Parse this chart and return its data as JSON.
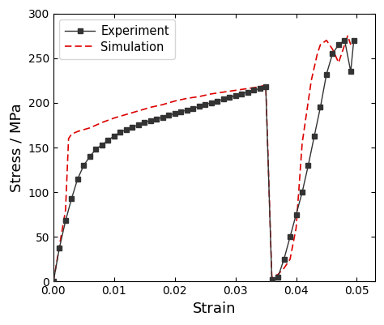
{
  "experiment_strain": [
    0.0,
    0.001,
    0.002,
    0.003,
    0.004,
    0.005,
    0.006,
    0.007,
    0.008,
    0.009,
    0.01,
    0.011,
    0.012,
    0.013,
    0.014,
    0.015,
    0.016,
    0.017,
    0.018,
    0.019,
    0.02,
    0.021,
    0.022,
    0.023,
    0.024,
    0.025,
    0.026,
    0.027,
    0.028,
    0.029,
    0.03,
    0.031,
    0.032,
    0.033,
    0.034,
    0.035,
    0.036,
    0.037,
    0.038,
    0.039,
    0.04,
    0.041,
    0.042,
    0.043,
    0.044,
    0.045,
    0.046,
    0.047,
    0.048,
    0.049,
    0.0495
  ],
  "experiment_stress": [
    0,
    38,
    68,
    93,
    115,
    130,
    140,
    148,
    153,
    158,
    163,
    167,
    170,
    173,
    175,
    178,
    180,
    182,
    184,
    186,
    188,
    190,
    192,
    194,
    196,
    198,
    200,
    202,
    204,
    206,
    208,
    210,
    212,
    214,
    216,
    218,
    2,
    5,
    25,
    50,
    75,
    100,
    130,
    163,
    195,
    232,
    255,
    265,
    270,
    235,
    270
  ],
  "simulation_strain": [
    0.0,
    0.001,
    0.002,
    0.0025,
    0.003,
    0.004,
    0.005,
    0.006,
    0.007,
    0.008,
    0.01,
    0.012,
    0.014,
    0.016,
    0.018,
    0.02,
    0.022,
    0.024,
    0.026,
    0.028,
    0.03,
    0.032,
    0.034,
    0.035,
    0.036,
    0.037,
    0.038,
    0.039,
    0.04,
    0.041,
    0.0425,
    0.0435,
    0.044,
    0.045,
    0.046,
    0.047,
    0.048,
    0.0485,
    0.049
  ],
  "simulation_stress": [
    0,
    40,
    80,
    160,
    165,
    168,
    170,
    172,
    175,
    178,
    183,
    187,
    191,
    195,
    198,
    202,
    205,
    207,
    210,
    212,
    214,
    216,
    218,
    220,
    5,
    8,
    15,
    25,
    60,
    155,
    225,
    255,
    265,
    270,
    260,
    245,
    265,
    275,
    265
  ],
  "xlabel": "Strain",
  "ylabel": "Stress / MPa",
  "xlim": [
    0.0,
    0.053
  ],
  "ylim": [
    0,
    300
  ],
  "xticks": [
    0.0,
    0.01,
    0.02,
    0.03,
    0.04,
    0.05
  ],
  "yticks": [
    0,
    50,
    100,
    150,
    200,
    250,
    300
  ],
  "experiment_color": "#333333",
  "simulation_color": "#dd0000",
  "experiment_label": "Experiment",
  "simulation_label": "Simulation",
  "background_color": "#ffffff",
  "legend_loc": "upper left"
}
